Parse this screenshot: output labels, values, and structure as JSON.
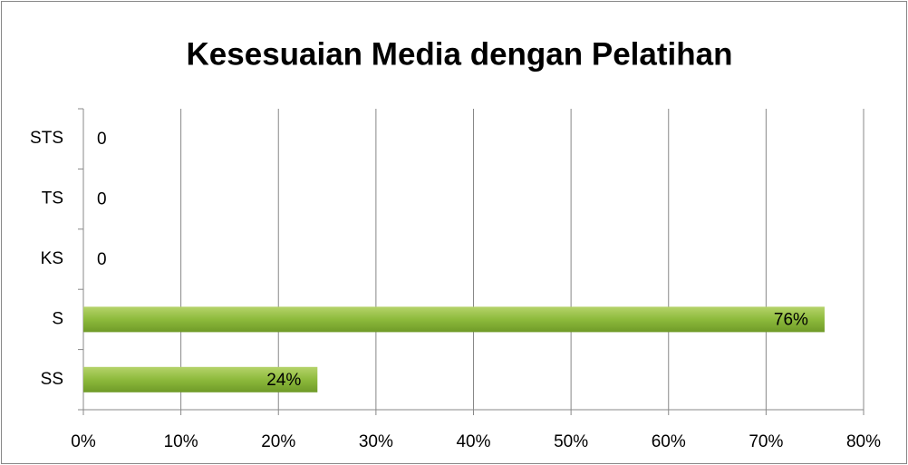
{
  "chart_data": {
    "type": "bar",
    "orientation": "horizontal",
    "title": "Kesesuaian Media dengan Pelatihan",
    "categories": [
      "SS",
      "S",
      "KS",
      "TS",
      "STS"
    ],
    "values": [
      24,
      76,
      0,
      0,
      0
    ],
    "value_labels": [
      "24%",
      "76%",
      "0",
      "0",
      "0"
    ],
    "color": "#8dba3c",
    "xlim": [
      0,
      80
    ],
    "xticks": [
      {
        "value": 0,
        "label": "0%"
      },
      {
        "value": 10,
        "label": "10%"
      },
      {
        "value": 20,
        "label": "20%"
      },
      {
        "value": 30,
        "label": "30%"
      },
      {
        "value": 40,
        "label": "40%"
      },
      {
        "value": 50,
        "label": "50%"
      },
      {
        "value": 60,
        "label": "60%"
      },
      {
        "value": 70,
        "label": "70%"
      },
      {
        "value": 80,
        "label": "80%"
      }
    ],
    "grid": true
  }
}
